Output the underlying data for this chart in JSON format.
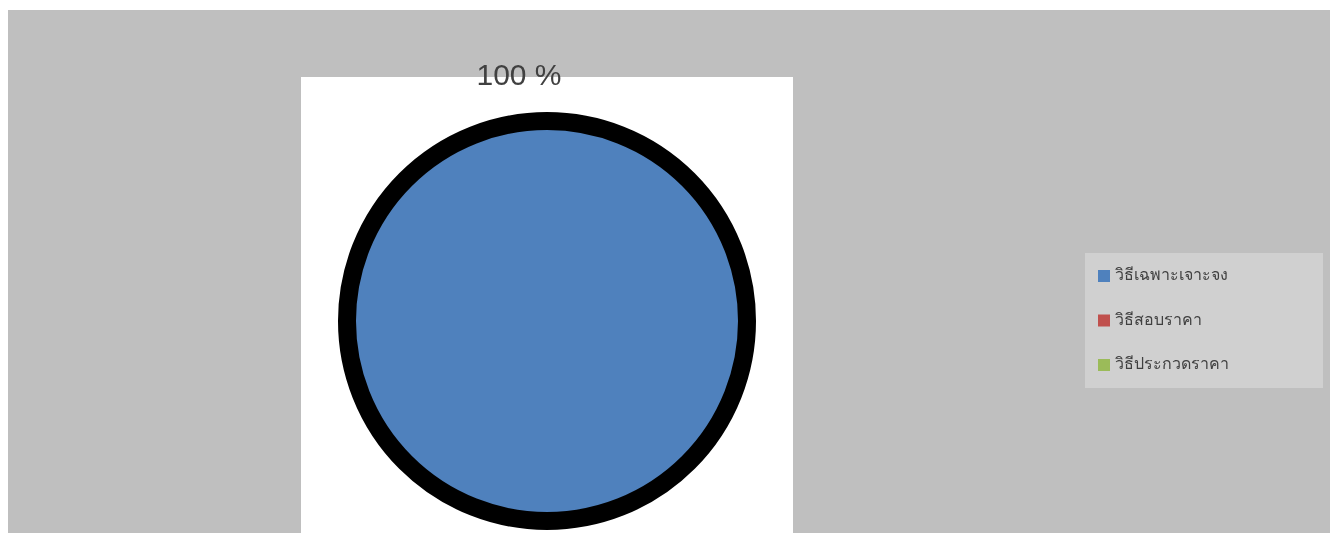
{
  "chart_data": {
    "type": "pie",
    "categories": [
      "วิธีเฉพาะเจาะจง",
      "วิธีสอบราคา",
      "วิธีประกวดราคา"
    ],
    "values": [
      100,
      0,
      0
    ],
    "colors": [
      "#4f81bd",
      "#c0504d",
      "#9bbb59"
    ],
    "value_labels": [
      "100 %",
      null,
      null
    ],
    "legend": "right"
  }
}
